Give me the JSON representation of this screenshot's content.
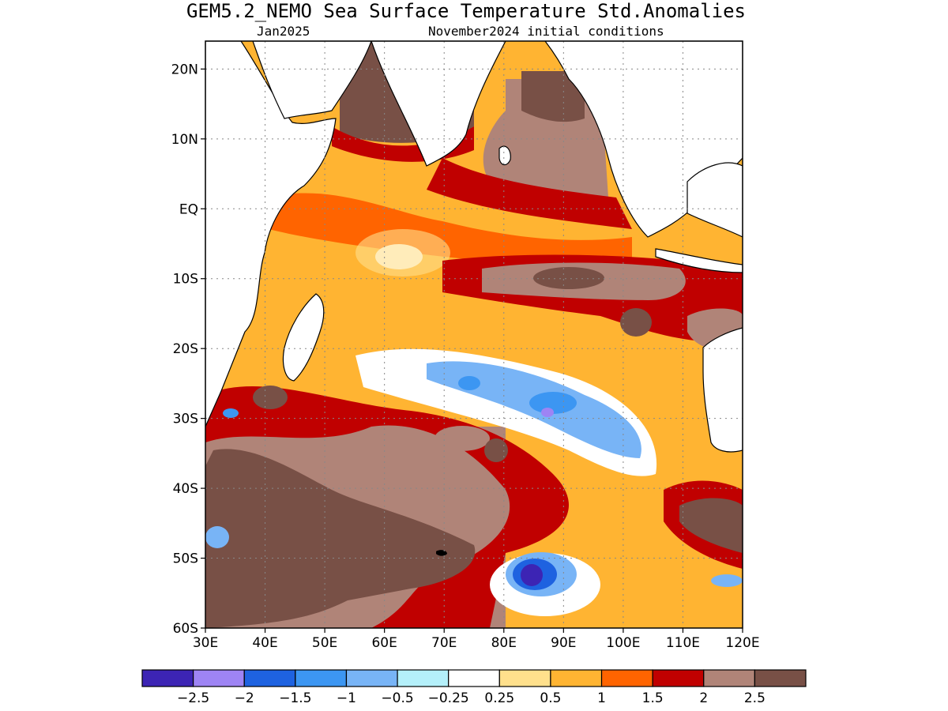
{
  "title": "GEM5.2_NEMO Sea Surface Temperature Std.Anomalies",
  "subtitle_left": "Jan2025",
  "subtitle_right": "November2024 initial conditions",
  "map": {
    "lon_range": [
      30,
      120
    ],
    "lat_range": [
      -60,
      24
    ],
    "lat_ticks": [
      {
        "value": 20,
        "label": "20N"
      },
      {
        "value": 10,
        "label": "10N"
      },
      {
        "value": 0,
        "label": "EQ"
      },
      {
        "value": -10,
        "label": "10S"
      },
      {
        "value": -20,
        "label": "20S"
      },
      {
        "value": -30,
        "label": "30S"
      },
      {
        "value": -40,
        "label": "40S"
      },
      {
        "value": -50,
        "label": "50S"
      },
      {
        "value": -60,
        "label": "60S"
      }
    ],
    "lon_ticks": [
      {
        "value": 30,
        "label": "30E"
      },
      {
        "value": 40,
        "label": "40E"
      },
      {
        "value": 50,
        "label": "50E"
      },
      {
        "value": 60,
        "label": "60E"
      },
      {
        "value": 70,
        "label": "70E"
      },
      {
        "value": 80,
        "label": "80E"
      },
      {
        "value": 90,
        "label": "90E"
      },
      {
        "value": 100,
        "label": "100E"
      },
      {
        "value": 110,
        "label": "110E"
      },
      {
        "value": 120,
        "label": "120E"
      }
    ],
    "grid": true
  },
  "colorbar": {
    "colors": [
      "#3c24b4",
      "#9e84f4",
      "#1e62e0",
      "#3c96f2",
      "#78b4f6",
      "#b4f0fa",
      "#ffffff",
      "#ffe08c",
      "#ffb432",
      "#ff6400",
      "#c00000",
      "#b08478",
      "#785046"
    ],
    "labels": [
      "−2.5",
      "−2",
      "−1.5",
      "−1",
      "−0.5",
      "−0.25",
      "0.25",
      "0.5",
      "1",
      "1.5",
      "2",
      "2.5"
    ]
  }
}
